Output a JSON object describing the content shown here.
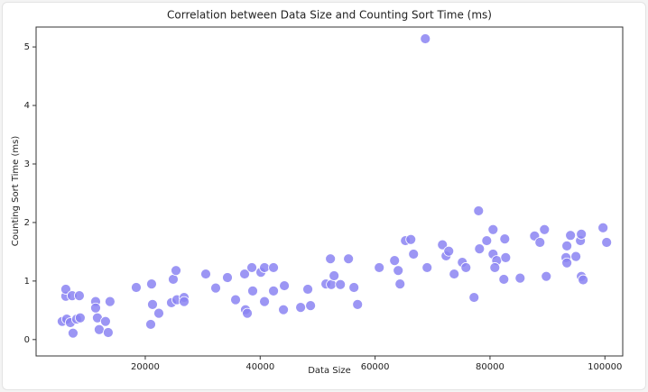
{
  "chart_data": {
    "type": "scatter",
    "title": "Correlation between Data Size and Counting Sort Time (ms)",
    "xlabel": "Data Size",
    "ylabel": "Counting Sort Time (ms)",
    "color": "#8b84f2",
    "xlim": [
      1000,
      103100
    ],
    "ylim": [
      -0.28,
      5.34
    ],
    "xticks": [
      20000,
      40000,
      60000,
      80000,
      100000
    ],
    "yticks": [
      0,
      1,
      2,
      3,
      4,
      5
    ],
    "x": [
      5540,
      6330,
      6170,
      6170,
      7270,
      6960,
      7430,
      8060,
      8680,
      8530,
      11360,
      11360,
      11670,
      11980,
      13080,
      13550,
      13860,
      18430,
      21100,
      21260,
      20950,
      22360,
      24560,
      24870,
      25350,
      25500,
      26760,
      26760,
      30530,
      32260,
      34300,
      35720,
      37290,
      37440,
      37760,
      38550,
      38700,
      40120,
      40750,
      40750,
      42320,
      42320,
      44210,
      44050,
      47040,
      48290,
      48770,
      51440,
      52230,
      52380,
      52860,
      53960,
      55370,
      56320,
      56950,
      60720,
      63390,
      64020,
      64340,
      65280,
      66220,
      66690,
      68740,
      69050,
      71720,
      72350,
      72820,
      73760,
      75180,
      75810,
      77220,
      78010,
      78170,
      79430,
      80530,
      80530,
      81160,
      80840,
      82570,
      82730,
      82410,
      85240,
      87760,
      88690,
      89480,
      89790,
      93380,
      93220,
      93380,
      94010,
      94950,
      95740,
      95900,
      95900,
      96210,
      99670,
      100300
    ],
    "y": [
      0.31,
      0.35,
      0.74,
      0.86,
      0.75,
      0.29,
      0.11,
      0.35,
      0.37,
      0.75,
      0.65,
      0.54,
      0.37,
      0.17,
      0.31,
      0.12,
      0.65,
      0.89,
      0.95,
      0.6,
      0.26,
      0.45,
      0.63,
      1.03,
      1.18,
      0.68,
      0.72,
      0.65,
      1.12,
      0.88,
      1.06,
      0.68,
      1.12,
      0.51,
      0.45,
      1.23,
      0.83,
      1.15,
      0.65,
      1.23,
      0.83,
      1.23,
      0.92,
      0.51,
      0.55,
      0.86,
      0.58,
      0.95,
      1.38,
      0.94,
      1.09,
      0.94,
      1.38,
      0.89,
      0.6,
      1.23,
      1.35,
      1.18,
      0.95,
      1.69,
      1.71,
      1.46,
      5.14,
      1.23,
      1.62,
      1.43,
      1.51,
      1.12,
      1.32,
      1.23,
      0.72,
      2.2,
      1.55,
      1.69,
      1.88,
      1.46,
      1.35,
      1.23,
      1.72,
      1.4,
      1.03,
      1.05,
      1.77,
      1.66,
      1.88,
      1.08,
      1.6,
      1.4,
      1.31,
      1.78,
      1.42,
      1.69,
      1.8,
      1.08,
      1.02,
      1.91,
      1.66
    ]
  }
}
